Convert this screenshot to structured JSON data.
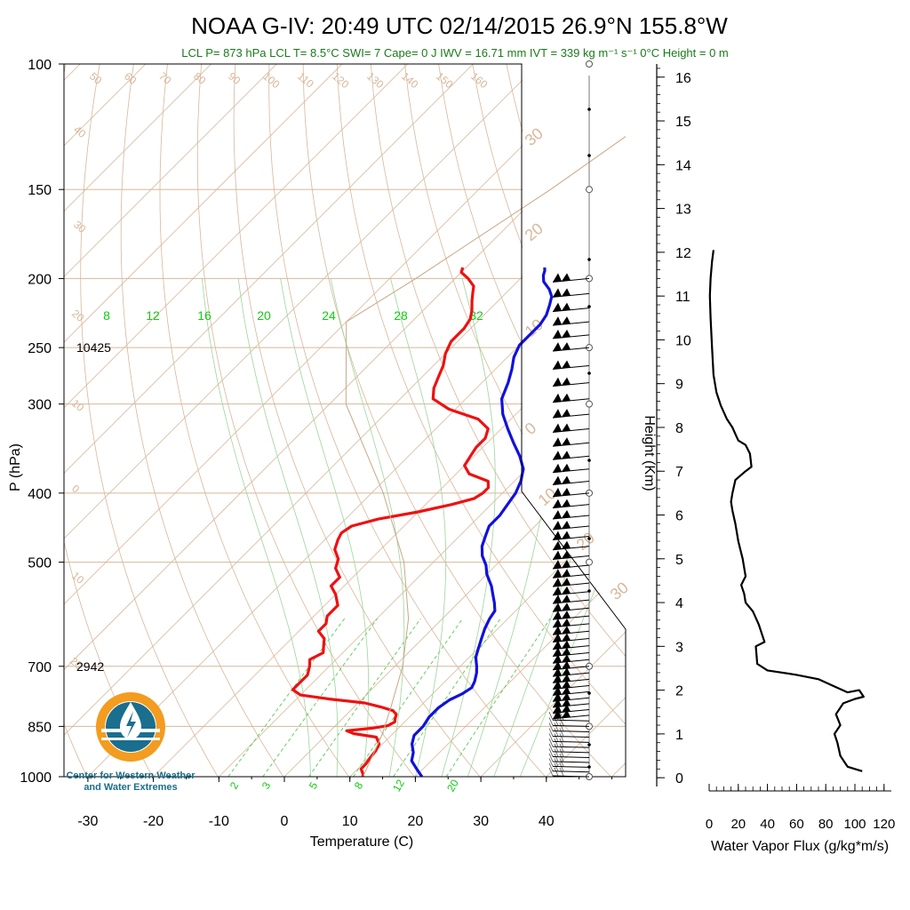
{
  "title": {
    "main": "NOAA G-IV: 20:49 UTC 02/14/2015  26.9°N 155.8°W",
    "subtitle": "LCL P= 873 hPa  LCL T= 8.5°C  SWI= 7  Cape= 0 J  IWV = 16.71 mm  IVT = 339 kg m⁻¹ s⁻¹  0°C Height = 0 m"
  },
  "logo": {
    "text_line1": "Center for Western Weather",
    "text_line2": "and Water Extremes",
    "colors": [
      "#f39c1f",
      "#1a6e8e"
    ]
  },
  "colors": {
    "temperature": "#ee1111",
    "dewpoint": "#1111dd",
    "isotherm": "#d8b79a",
    "dry_adiabat": "#d8b79a",
    "moist_adiabat": "#9bd69b",
    "mixing_ratio": "#55cc55",
    "label_green": "#11cc11",
    "subtitle_green": "#1a7a1a"
  },
  "chart_data": [
    {
      "type": "line",
      "subtype": "skew-T log-P",
      "xlabel": "Temperature (C)",
      "ylabel": "P (hPa)",
      "x_ticks": [
        -30,
        -20,
        -10,
        0,
        10,
        20,
        30,
        40
      ],
      "y_ticks": [
        100,
        150,
        200,
        250,
        300,
        400,
        500,
        700,
        850,
        1000
      ],
      "xlim": [
        -33,
        50
      ],
      "ylim": [
        1000,
        100
      ],
      "height_labels": [
        {
          "p": 250,
          "text": "10425"
        },
        {
          "p": 700,
          "text": "2942"
        }
      ],
      "isotherm_labels": [
        "50",
        "60",
        "70",
        "80",
        "90",
        "100",
        "110",
        "120",
        "130",
        "140",
        "150",
        "160",
        "40",
        "30",
        "20",
        "10",
        "0",
        "10",
        "20",
        "30",
        "20",
        "10",
        "0",
        "10",
        "20",
        "30"
      ],
      "mixing_ratio_top_labels": [
        "8",
        "12",
        "16",
        "20",
        "24",
        "28",
        "32"
      ],
      "mixing_ratio_bottom_labels": [
        "2",
        "3",
        "5",
        "8",
        "12",
        "20"
      ],
      "series": [
        {
          "key": "temperature",
          "points": [
            [
              1000,
              12
            ],
            [
              990,
              11.5
            ],
            [
              975,
              10.5
            ],
            [
              960,
              10.5
            ],
            [
              940,
              10.2
            ],
            [
              920,
              10
            ],
            [
              900,
              9.5
            ],
            [
              880,
              8
            ],
            [
              870,
              4
            ],
            [
              862,
              2.5
            ],
            [
              855,
              6
            ],
            [
              848,
              8
            ],
            [
              838,
              8.5
            ],
            [
              828,
              8
            ],
            [
              818,
              7.6
            ],
            [
              808,
              6.5
            ],
            [
              798,
              4
            ],
            [
              788,
              1
            ],
            [
              778,
              -5
            ],
            [
              768,
              -10
            ],
            [
              755,
              -12
            ],
            [
              740,
              -12
            ],
            [
              720,
              -12
            ],
            [
              700,
              -13
            ],
            [
              685,
              -14
            ],
            [
              670,
              -13
            ],
            [
              655,
              -14
            ],
            [
              640,
              -15
            ],
            [
              625,
              -17
            ],
            [
              610,
              -17
            ],
            [
              595,
              -18
            ],
            [
              575,
              -18
            ],
            [
              555,
              -20
            ],
            [
              540,
              -22
            ],
            [
              525,
              -22
            ],
            [
              510,
              -24
            ],
            [
              495,
              -25
            ],
            [
              480,
              -27
            ],
            [
              465,
              -28
            ],
            [
              455,
              -28.5
            ],
            [
              445,
              -28
            ],
            [
              435,
              -25
            ],
            [
              425,
              -20
            ],
            [
              415,
              -16
            ],
            [
              407,
              -13.5
            ],
            [
              400,
              -13
            ],
            [
              393,
              -13
            ],
            [
              385,
              -14
            ],
            [
              376,
              -18
            ],
            [
              366,
              -20
            ],
            [
              356,
              -20.5
            ],
            [
              345,
              -21
            ],
            [
              335,
              -21
            ],
            [
              325,
              -22
            ],
            [
              315,
              -25
            ],
            [
              305,
              -31
            ],
            [
              295,
              -35
            ],
            [
              285,
              -36.5
            ],
            [
              275,
              -37.5
            ],
            [
              265,
              -38.5
            ],
            [
              255,
              -40
            ],
            [
              245,
              -41
            ],
            [
              235,
              -41
            ],
            [
              228,
              -41.5
            ],
            [
              222,
              -42.5
            ],
            [
              215,
              -44
            ],
            [
              210,
              -45
            ],
            [
              205,
              -46
            ],
            [
              200,
              -48
            ],
            [
              196,
              -50
            ],
            [
              193,
              -50.5
            ]
          ]
        },
        {
          "key": "dewpoint",
          "points": [
            [
              1000,
              21
            ],
            [
              975,
              19
            ],
            [
              950,
              17
            ],
            [
              925,
              16
            ],
            [
              900,
              14.5
            ],
            [
              875,
              13.5
            ],
            [
              850,
              13.5
            ],
            [
              825,
              13
            ],
            [
              800,
              13
            ],
            [
              780,
              13.5
            ],
            [
              765,
              14.5
            ],
            [
              750,
              15
            ],
            [
              735,
              14.5
            ],
            [
              715,
              13.5
            ],
            [
              700,
              12.5
            ],
            [
              680,
              11
            ],
            [
              660,
              10
            ],
            [
              640,
              9
            ],
            [
              620,
              8
            ],
            [
              600,
              7.2
            ],
            [
              585,
              6.8
            ],
            [
              570,
              5.5
            ],
            [
              555,
              4
            ],
            [
              540,
              2.5
            ],
            [
              520,
              0
            ],
            [
              505,
              -1.5
            ],
            [
              490,
              -3.5
            ],
            [
              475,
              -5
            ],
            [
              460,
              -6
            ],
            [
              445,
              -7
            ],
            [
              430,
              -7
            ],
            [
              415,
              -7.5
            ],
            [
              400,
              -8
            ],
            [
              385,
              -9
            ],
            [
              370,
              -10.5
            ],
            [
              355,
              -13
            ],
            [
              340,
              -16
            ],
            [
              325,
              -19
            ],
            [
              310,
              -22
            ],
            [
              295,
              -24.5
            ],
            [
              280,
              -26
            ],
            [
              268,
              -27.5
            ],
            [
              258,
              -29
            ],
            [
              248,
              -30
            ],
            [
              240,
              -30
            ],
            [
              232,
              -30
            ],
            [
              225,
              -30.5
            ],
            [
              218,
              -31.5
            ],
            [
              212,
              -32.5
            ],
            [
              207,
              -34
            ],
            [
              202,
              -36
            ],
            [
              198,
              -37
            ],
            [
              195,
              -37.5
            ],
            [
              193,
              -38
            ]
          ]
        },
        {
          "key": "parcel",
          "points": [
            [
              1000,
              12
            ],
            [
              873,
              8.5
            ],
            [
              800,
              5.7
            ],
            [
              700,
              1.2
            ],
            [
              600,
              -5.2
            ],
            [
              500,
              -14.5
            ],
            [
              400,
              -28.2
            ],
            [
              300,
              -47.5
            ],
            [
              230,
              -60
            ],
            [
              200,
              -56
            ],
            [
              150,
              -49
            ],
            [
              100,
              -41
            ]
          ]
        }
      ],
      "wind_barbs": {
        "pressures": [
          1000,
          985,
          970,
          955,
          940,
          925,
          910,
          895,
          880,
          865,
          850,
          835,
          820,
          805,
          790,
          775,
          760,
          745,
          730,
          715,
          700,
          685,
          670,
          655,
          640,
          625,
          610,
          595,
          580,
          565,
          550,
          535,
          520,
          505,
          490,
          475,
          460,
          445,
          430,
          415,
          400,
          385,
          370,
          355,
          340,
          325,
          310,
          295,
          280,
          265,
          250,
          240,
          230,
          220,
          210,
          200
        ],
        "direction": "westerly"
      }
    },
    {
      "type": "line",
      "xlabel": "Water Vapor Flux (g/kg*m/s)",
      "ylabel": "Height (Km)",
      "x_ticks": [
        0,
        20,
        40,
        60,
        80,
        100,
        120
      ],
      "y_ticks": [
        0,
        1,
        2,
        3,
        4,
        5,
        6,
        7,
        8,
        9,
        10,
        11,
        12,
        13,
        14,
        15,
        16
      ],
      "xlim": [
        0,
        125
      ],
      "ylim": [
        -0.2,
        16.3
      ],
      "series": [
        {
          "key": "water_vapor_flux",
          "points": [
            [
              105,
              0.15
            ],
            [
              95,
              0.25
            ],
            [
              90,
              0.5
            ],
            [
              88,
              0.8
            ],
            [
              86,
              1.0
            ],
            [
              90,
              1.2
            ],
            [
              87,
              1.45
            ],
            [
              92,
              1.7
            ],
            [
              100,
              1.8
            ],
            [
              106,
              1.85
            ],
            [
              103,
              2.0
            ],
            [
              95,
              1.95
            ],
            [
              85,
              2.1
            ],
            [
              75,
              2.25
            ],
            [
              60,
              2.35
            ],
            [
              40,
              2.45
            ],
            [
              33,
              2.6
            ],
            [
              32,
              3.0
            ],
            [
              38,
              3.1
            ],
            [
              34,
              3.5
            ],
            [
              30,
              3.8
            ],
            [
              25,
              4.0
            ],
            [
              24,
              4.2
            ],
            [
              22,
              4.4
            ],
            [
              25,
              4.6
            ],
            [
              23,
              5.0
            ],
            [
              20,
              5.4
            ],
            [
              18,
              5.8
            ],
            [
              16,
              6.1
            ],
            [
              15,
              6.3
            ],
            [
              16,
              6.5
            ],
            [
              18,
              6.8
            ],
            [
              25,
              7.0
            ],
            [
              29,
              7.1
            ],
            [
              28,
              7.4
            ],
            [
              25,
              7.6
            ],
            [
              20,
              7.7
            ],
            [
              18,
              7.85
            ],
            [
              16,
              8.0
            ],
            [
              12,
              8.2
            ],
            [
              8,
              8.5
            ],
            [
              5,
              8.8
            ],
            [
              3,
              9.2
            ],
            [
              2,
              9.8
            ],
            [
              1,
              10.5
            ],
            [
              0.5,
              11
            ],
            [
              1,
              11.4
            ],
            [
              2,
              11.8
            ],
            [
              3,
              12.05
            ]
          ]
        }
      ]
    }
  ]
}
